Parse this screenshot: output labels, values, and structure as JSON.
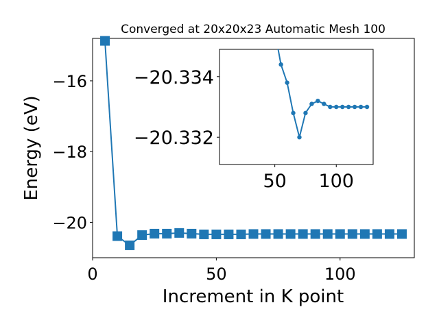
{
  "chart_data": [
    {
      "type": "line",
      "title": "Converged at 20x20x23 Automatic Mesh 100",
      "xlabel": "Increment in K point",
      "ylabel": "Energy (eV)",
      "xlim": [
        0,
        130
      ],
      "ylim": [
        -21.0,
        -14.8
      ],
      "xticks": [
        0,
        50,
        100
      ],
      "yticks": [
        -16,
        -18,
        -20
      ],
      "tick_labels": {
        "x": [
          "0",
          "50",
          "100"
        ],
        "y": [
          "−16",
          "−18",
          "−20"
        ]
      },
      "grid": false,
      "legend": "none",
      "marker": "square",
      "color": "#1f77b4",
      "series": [
        {
          "x": [
            5,
            10,
            15,
            20,
            25,
            30,
            35,
            40,
            45,
            50,
            55,
            60,
            65,
            70,
            75,
            80,
            85,
            90,
            95,
            100,
            105,
            110,
            115,
            120,
            125
          ],
          "values": [
            -14.87,
            -20.39,
            -20.65,
            -20.36,
            -20.32,
            -20.32,
            -20.3,
            -20.32,
            -20.34,
            -20.34,
            -20.34,
            -20.34,
            -20.33,
            -20.33,
            -20.33,
            -20.33,
            -20.33,
            -20.33,
            -20.33,
            -20.33,
            -20.33,
            -20.33,
            -20.33,
            -20.33,
            -20.33
          ]
        }
      ]
    },
    {
      "type": "line",
      "title": "",
      "xlabel": "",
      "ylabel": "",
      "xlim": [
        5,
        130
      ],
      "ylim": [
        -20.3311,
        -20.3349
      ],
      "xticks": [
        50,
        100
      ],
      "yticks": [
        -20.334,
        -20.332
      ],
      "tick_labels": {
        "x": [
          "50",
          "100"
        ],
        "y": [
          "−20.334",
          "−20.332"
        ]
      },
      "grid": false,
      "legend": "none",
      "marker": "circle",
      "color": "#1f77b4",
      "series": [
        {
          "x": [
            50,
            55,
            60,
            65,
            70,
            75,
            80,
            85,
            90,
            95,
            100,
            105,
            110,
            115,
            120,
            125
          ],
          "values": [
            -20.3355,
            -20.3344,
            -20.3338,
            -20.3328,
            -20.332,
            -20.3328,
            -20.3331,
            -20.3332,
            -20.3331,
            -20.333,
            -20.333,
            -20.333,
            -20.333,
            -20.333,
            -20.333,
            -20.333
          ]
        }
      ]
    }
  ]
}
